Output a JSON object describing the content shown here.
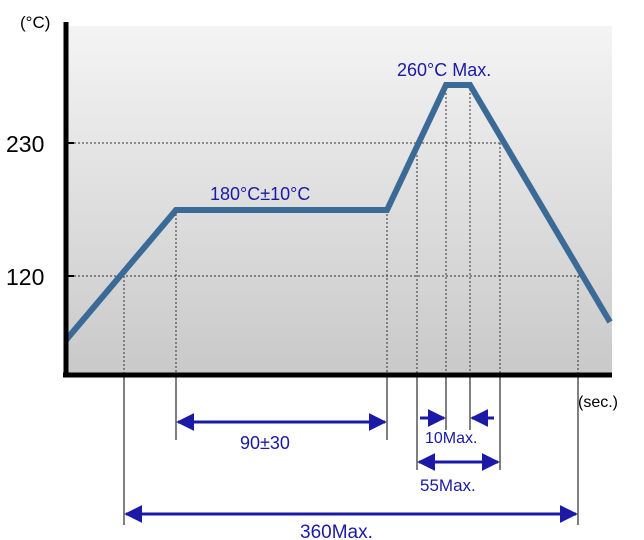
{
  "y_axis": {
    "unit_label": "(°C)",
    "ticks": [
      {
        "label": "230",
        "value": 230
      },
      {
        "label": "120",
        "value": 120
      }
    ]
  },
  "x_axis": {
    "unit_label": "(sec.)"
  },
  "profile": {
    "plateau_label": "180°C±10°C",
    "peak_label": "260°C Max."
  },
  "dimensions": {
    "preheat": "90±30",
    "peak_hold": "10Max.",
    "above_230": "55Max.",
    "total": "360Max."
  },
  "colors": {
    "curve": "#3b6a96",
    "annotation": "#1a1aa6",
    "background_top": "#f4f4f4",
    "background_bottom": "#c9c9c9",
    "axis": "#000000"
  }
}
